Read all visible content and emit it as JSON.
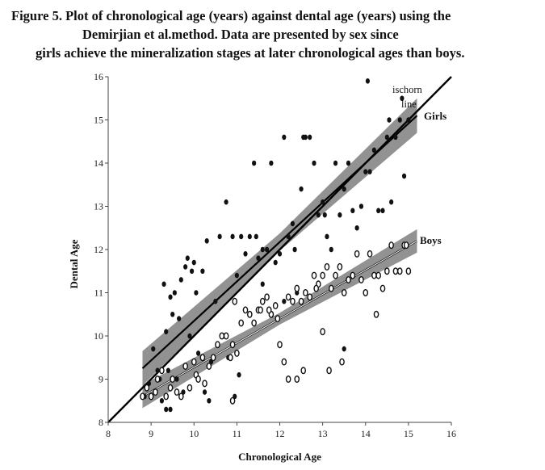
{
  "caption": {
    "line1": "Figure 5. Plot of chronological age (years) against dental age (years) using the",
    "line2": "Demirjian et al.method. Data are presented by sex since",
    "line3": "girls achieve the mineralization stages at later chronological ages than boys."
  },
  "chart_data": {
    "type": "scatter",
    "title": "",
    "xlabel": "Chronological Age",
    "ylabel": "Dental Age",
    "xlim": [
      8,
      16
    ],
    "ylim": [
      8,
      16
    ],
    "xticks": [
      "8",
      "9",
      "10",
      "11",
      "12",
      "13",
      "14",
      "15",
      "16"
    ],
    "yticks": [
      "8",
      "9",
      "10",
      "11",
      "12",
      "13",
      "14",
      "15",
      "16"
    ],
    "annotations": {
      "ischorn_line1": "ischorn",
      "ischorn_line2": "line",
      "girls": "Girls",
      "boys": "Boys"
    },
    "reference_line": {
      "x": [
        8,
        16
      ],
      "y": [
        8,
        16
      ]
    },
    "girls_fit": {
      "x": [
        8.8,
        15.2
      ],
      "y": [
        9.25,
        15.1
      ],
      "band_halfwidth": 0.4
    },
    "boys_fit": {
      "x": [
        8.8,
        15.2
      ],
      "y": [
        8.6,
        12.2
      ],
      "band_halfwidth": 0.27
    },
    "colors": {
      "girls": "#111111",
      "boys": "#111111",
      "band": "#7f7f7f",
      "fit_line": "#000000"
    },
    "series": [
      {
        "name": "Girls",
        "marker": "filled",
        "x": [
          8.85,
          8.95,
          9.05,
          9.2,
          9.25,
          9.3,
          9.35,
          9.4,
          9.45,
          9.5,
          9.55,
          9.6,
          9.65,
          9.7,
          9.75,
          9.8,
          9.85,
          9.9,
          9.95,
          10.0,
          10.05,
          10.1,
          10.2,
          10.3,
          10.4,
          10.5,
          10.6,
          10.7,
          10.8,
          10.9,
          11.0,
          11.05,
          11.1,
          11.2,
          11.3,
          11.4,
          11.45,
          11.5,
          11.6,
          11.7,
          11.8,
          11.9,
          12.0,
          12.1,
          12.2,
          12.3,
          12.4,
          12.5,
          12.6,
          12.7,
          12.8,
          12.9,
          13.0,
          13.1,
          13.2,
          13.3,
          13.4,
          13.5,
          13.6,
          13.7,
          13.8,
          13.9,
          14.0,
          14.1,
          14.2,
          14.3,
          14.4,
          14.5,
          14.6,
          14.7,
          14.8,
          14.9,
          15.0,
          9.15,
          9.35,
          10.35,
          10.95,
          11.6,
          12.1,
          12.35,
          12.55,
          13.05,
          13.5,
          14.05,
          14.55,
          14.85,
          10.25,
          9.45,
          10.75
        ],
        "y": [
          8.6,
          8.9,
          9.7,
          9.0,
          8.5,
          11.2,
          8.3,
          9.2,
          10.9,
          10.5,
          11.0,
          9.0,
          10.4,
          11.3,
          8.7,
          11.6,
          11.8,
          10.0,
          11.5,
          11.7,
          11.0,
          9.6,
          11.5,
          12.2,
          9.4,
          10.8,
          12.3,
          10.0,
          9.5,
          12.3,
          11.4,
          9.1,
          12.3,
          11.9,
          12.3,
          14.0,
          12.3,
          11.8,
          12.0,
          12.0,
          14.0,
          11.7,
          11.9,
          14.6,
          12.3,
          12.6,
          11.0,
          13.4,
          14.6,
          14.6,
          14.0,
          12.8,
          13.1,
          12.3,
          12.0,
          14.0,
          12.8,
          13.4,
          14.0,
          12.9,
          12.5,
          13.0,
          13.8,
          13.8,
          14.3,
          12.9,
          12.9,
          14.6,
          13.1,
          14.6,
          15.0,
          13.7,
          15.0,
          9.2,
          10.1,
          8.5,
          8.6,
          11.2,
          10.8,
          12.0,
          14.6,
          12.8,
          9.7,
          15.9,
          15.0,
          15.5,
          8.7,
          8.3,
          13.1
        ]
      },
      {
        "name": "Boys",
        "marker": "open",
        "x": [
          8.8,
          8.9,
          9.0,
          9.1,
          9.15,
          9.25,
          9.35,
          9.45,
          9.5,
          9.6,
          9.7,
          9.8,
          9.9,
          10.0,
          10.05,
          10.1,
          10.2,
          10.25,
          10.35,
          10.45,
          10.55,
          10.65,
          10.75,
          10.85,
          10.9,
          10.95,
          11.0,
          11.1,
          11.2,
          11.3,
          11.4,
          11.5,
          11.6,
          11.7,
          11.8,
          11.9,
          12.0,
          12.1,
          12.2,
          12.3,
          12.4,
          12.5,
          12.6,
          12.7,
          12.8,
          12.9,
          13.0,
          13.1,
          13.2,
          13.3,
          13.4,
          13.5,
          13.6,
          13.7,
          13.8,
          13.9,
          14.0,
          14.1,
          14.2,
          14.3,
          14.4,
          14.5,
          14.6,
          14.7,
          14.8,
          14.9,
          15.0,
          10.9,
          11.55,
          12.85,
          13.15,
          13.45,
          14.25,
          14.95,
          11.75,
          11.95,
          12.2,
          12.4,
          12.55,
          13.0
        ],
        "y": [
          8.6,
          8.8,
          8.6,
          8.7,
          9.0,
          9.2,
          8.6,
          8.8,
          9.0,
          8.7,
          8.6,
          9.3,
          8.8,
          9.4,
          9.1,
          9.0,
          9.5,
          8.9,
          9.3,
          9.5,
          9.8,
          10.0,
          10.0,
          9.5,
          9.8,
          10.8,
          9.6,
          10.3,
          10.6,
          10.5,
          10.3,
          10.6,
          10.8,
          10.9,
          10.5,
          10.7,
          9.8,
          9.4,
          10.9,
          10.8,
          11.1,
          10.8,
          11.0,
          10.9,
          11.4,
          11.2,
          11.4,
          11.6,
          11.1,
          11.4,
          11.6,
          11.0,
          11.3,
          11.4,
          11.9,
          11.3,
          11.0,
          11.9,
          11.4,
          11.4,
          11.1,
          11.5,
          12.1,
          11.5,
          11.5,
          12.1,
          11.5,
          8.5,
          10.6,
          11.1,
          9.2,
          9.4,
          10.5,
          12.1,
          10.6,
          10.4,
          9.0,
          9.0,
          9.2,
          10.1
        ]
      }
    ]
  }
}
